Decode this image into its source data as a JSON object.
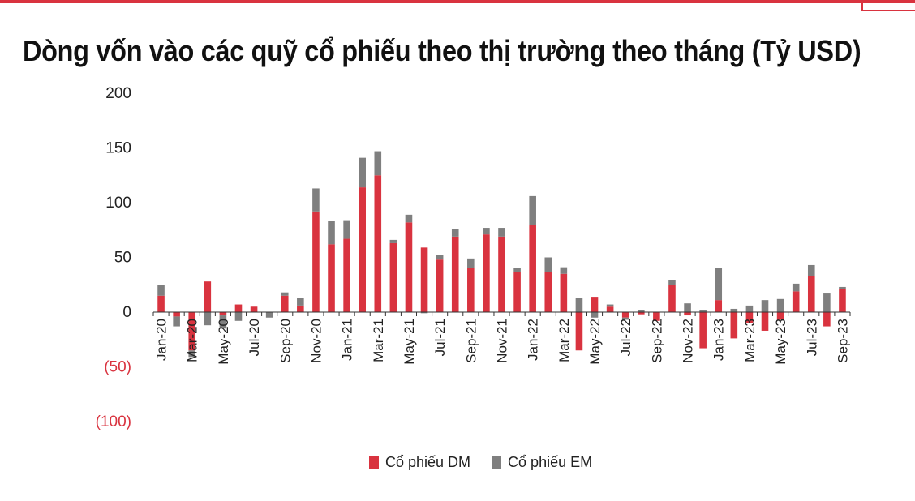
{
  "title": "Dòng vốn vào các quỹ cổ phiếu theo thị trường theo tháng (Tỷ USD)",
  "chart_data": {
    "type": "bar",
    "stacked": true,
    "title": "Dòng vốn vào các quỹ cổ phiếu theo thị trường theo tháng (Tỷ USD)",
    "ylim": [
      -100,
      200
    ],
    "yticks": [
      200,
      150,
      100,
      50,
      0,
      -50,
      -100
    ],
    "ytick_labels": [
      "200",
      "150",
      "100",
      "50",
      "0",
      "(50)",
      "(100)"
    ],
    "grid": false,
    "legend_position": "bottom",
    "categories": [
      "Jan-20",
      "Feb-20",
      "Mar-20",
      "Apr-20",
      "May-20",
      "Jun-20",
      "Jul-20",
      "Aug-20",
      "Sep-20",
      "Oct-20",
      "Nov-20",
      "Dec-20",
      "Jan-21",
      "Feb-21",
      "Mar-21",
      "Apr-21",
      "May-21",
      "Jun-21",
      "Jul-21",
      "Aug-21",
      "Sep-21",
      "Oct-21",
      "Nov-21",
      "Dec-21",
      "Jan-22",
      "Feb-22",
      "Mar-22",
      "Apr-22",
      "May-22",
      "Jun-22",
      "Jul-22",
      "Aug-22",
      "Sep-22",
      "Oct-22",
      "Nov-22",
      "Dec-22",
      "Jan-23",
      "Feb-23",
      "Mar-23",
      "Apr-23",
      "May-23",
      "Jun-23",
      "Jul-23",
      "Aug-23",
      "Sep-23"
    ],
    "tick_labels": [
      "Jan-20",
      "",
      "Mar-20",
      "",
      "May-20",
      "",
      "Jul-20",
      "",
      "Sep-20",
      "",
      "Nov-20",
      "",
      "Jan-21",
      "",
      "Mar-21",
      "",
      "May-21",
      "",
      "Jul-21",
      "",
      "Sep-21",
      "",
      "Nov-21",
      "",
      "Jan-22",
      "",
      "Mar-22",
      "",
      "May-22",
      "",
      "Jul-22",
      "",
      "Sep-22",
      "",
      "Nov-22",
      "",
      "Jan-23",
      "",
      "Mar-23",
      "",
      "May-23",
      "",
      "Jul-23",
      "",
      "Sep-23"
    ],
    "series": [
      {
        "name": "Cổ phiếu DM",
        "color": "#d9333f",
        "values": [
          15,
          -4,
          -35,
          28,
          -3,
          7,
          5,
          0,
          15,
          6,
          92,
          62,
          67,
          114,
          125,
          63,
          82,
          59,
          48,
          69,
          40,
          71,
          69,
          37,
          80,
          37,
          35,
          -35,
          14,
          5,
          -5,
          -2,
          -8,
          25,
          -3,
          -33,
          11,
          -24,
          -10,
          -17,
          -7,
          19,
          33,
          -13,
          21
        ]
      },
      {
        "name": "Cổ phiếu EM",
        "color": "#7f7f7f",
        "values": [
          10,
          -9,
          -6,
          -12,
          -12,
          -8,
          0,
          -5,
          3,
          7,
          21,
          21,
          17,
          27,
          22,
          3,
          7,
          -1,
          4,
          7,
          9,
          6,
          8,
          3,
          26,
          13,
          6,
          13,
          -5,
          2,
          -2,
          2,
          0,
          4,
          8,
          2,
          29,
          3,
          6,
          11,
          12,
          7,
          10,
          17,
          2
        ]
      }
    ]
  }
}
